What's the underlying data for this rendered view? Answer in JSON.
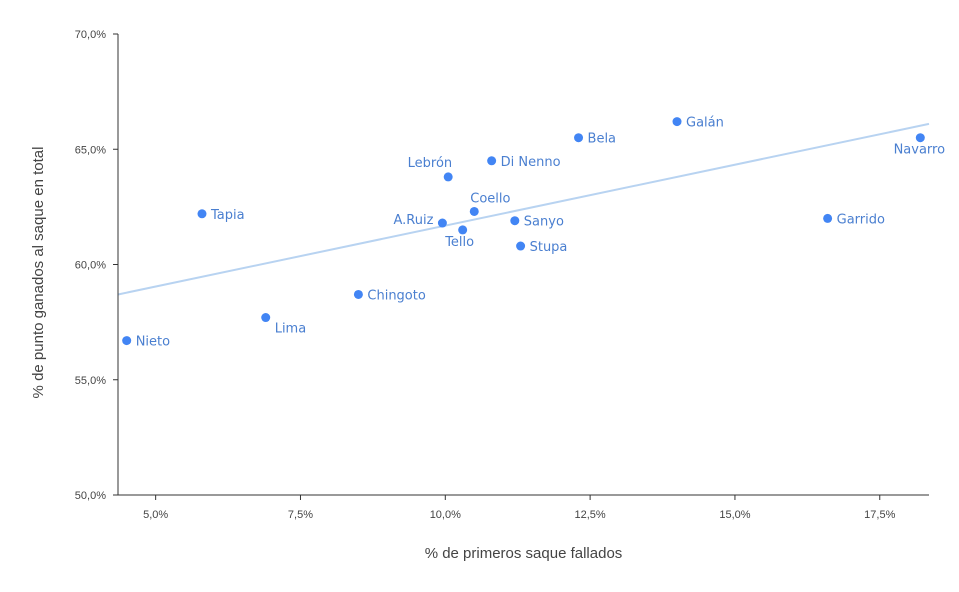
{
  "chart_data": {
    "type": "scatter",
    "title": "",
    "xlabel": "% de primeros saque fallados",
    "ylabel": "% de punto ganados al saque en total",
    "xlim": [
      4.35,
      18.35
    ],
    "ylim": [
      50,
      70
    ],
    "x_ticks": [
      {
        "value": 5,
        "label": "5,0%"
      },
      {
        "value": 7.5,
        "label": "7,5%"
      },
      {
        "value": 10,
        "label": "10,0%"
      },
      {
        "value": 12.5,
        "label": "12,5%"
      },
      {
        "value": 15,
        "label": "15,0%"
      },
      {
        "value": 17.5,
        "label": "17,5%"
      }
    ],
    "y_ticks": [
      {
        "value": 50,
        "label": "50,0%"
      },
      {
        "value": 55,
        "label": "55,0%"
      },
      {
        "value": 60,
        "label": "60,0%"
      },
      {
        "value": 65,
        "label": "65,0%"
      },
      {
        "value": 70,
        "label": "70,0%"
      }
    ],
    "grid": false,
    "legend": "none",
    "point_color": "#4285f4",
    "label_color": "#4a7fd0",
    "trendline_color": "#b8d3f1",
    "trendline": {
      "x": [
        4.35,
        18.35
      ],
      "y": [
        58.7,
        66.1
      ]
    },
    "points": [
      {
        "name": "Nieto",
        "x": 4.5,
        "y": 56.7,
        "label_pos": "right"
      },
      {
        "name": "Tapia",
        "x": 5.8,
        "y": 62.2,
        "label_pos": "right"
      },
      {
        "name": "Lima",
        "x": 6.9,
        "y": 57.7,
        "label_pos": "below-right"
      },
      {
        "name": "Chingoto",
        "x": 8.5,
        "y": 58.7,
        "label_pos": "right"
      },
      {
        "name": "A.Ruiz",
        "x": 9.95,
        "y": 61.8,
        "label_pos": "left"
      },
      {
        "name": "Lebrón",
        "x": 10.05,
        "y": 63.8,
        "label_pos": "above-left"
      },
      {
        "name": "Tello",
        "x": 10.3,
        "y": 61.5,
        "label_pos": "below"
      },
      {
        "name": "Coello",
        "x": 10.5,
        "y": 62.3,
        "label_pos": "above-right"
      },
      {
        "name": "Di Nenno",
        "x": 10.8,
        "y": 64.5,
        "label_pos": "right"
      },
      {
        "name": "Sanyo",
        "x": 11.2,
        "y": 61.9,
        "label_pos": "right"
      },
      {
        "name": "Stupa",
        "x": 11.3,
        "y": 60.8,
        "label_pos": "right"
      },
      {
        "name": "Bela",
        "x": 12.3,
        "y": 65.5,
        "label_pos": "right"
      },
      {
        "name": "Galán",
        "x": 14.0,
        "y": 66.2,
        "label_pos": "right"
      },
      {
        "name": "Garrido",
        "x": 16.6,
        "y": 62.0,
        "label_pos": "right"
      },
      {
        "name": "Navarro",
        "x": 18.2,
        "y": 65.5,
        "label_pos": "below"
      }
    ]
  }
}
